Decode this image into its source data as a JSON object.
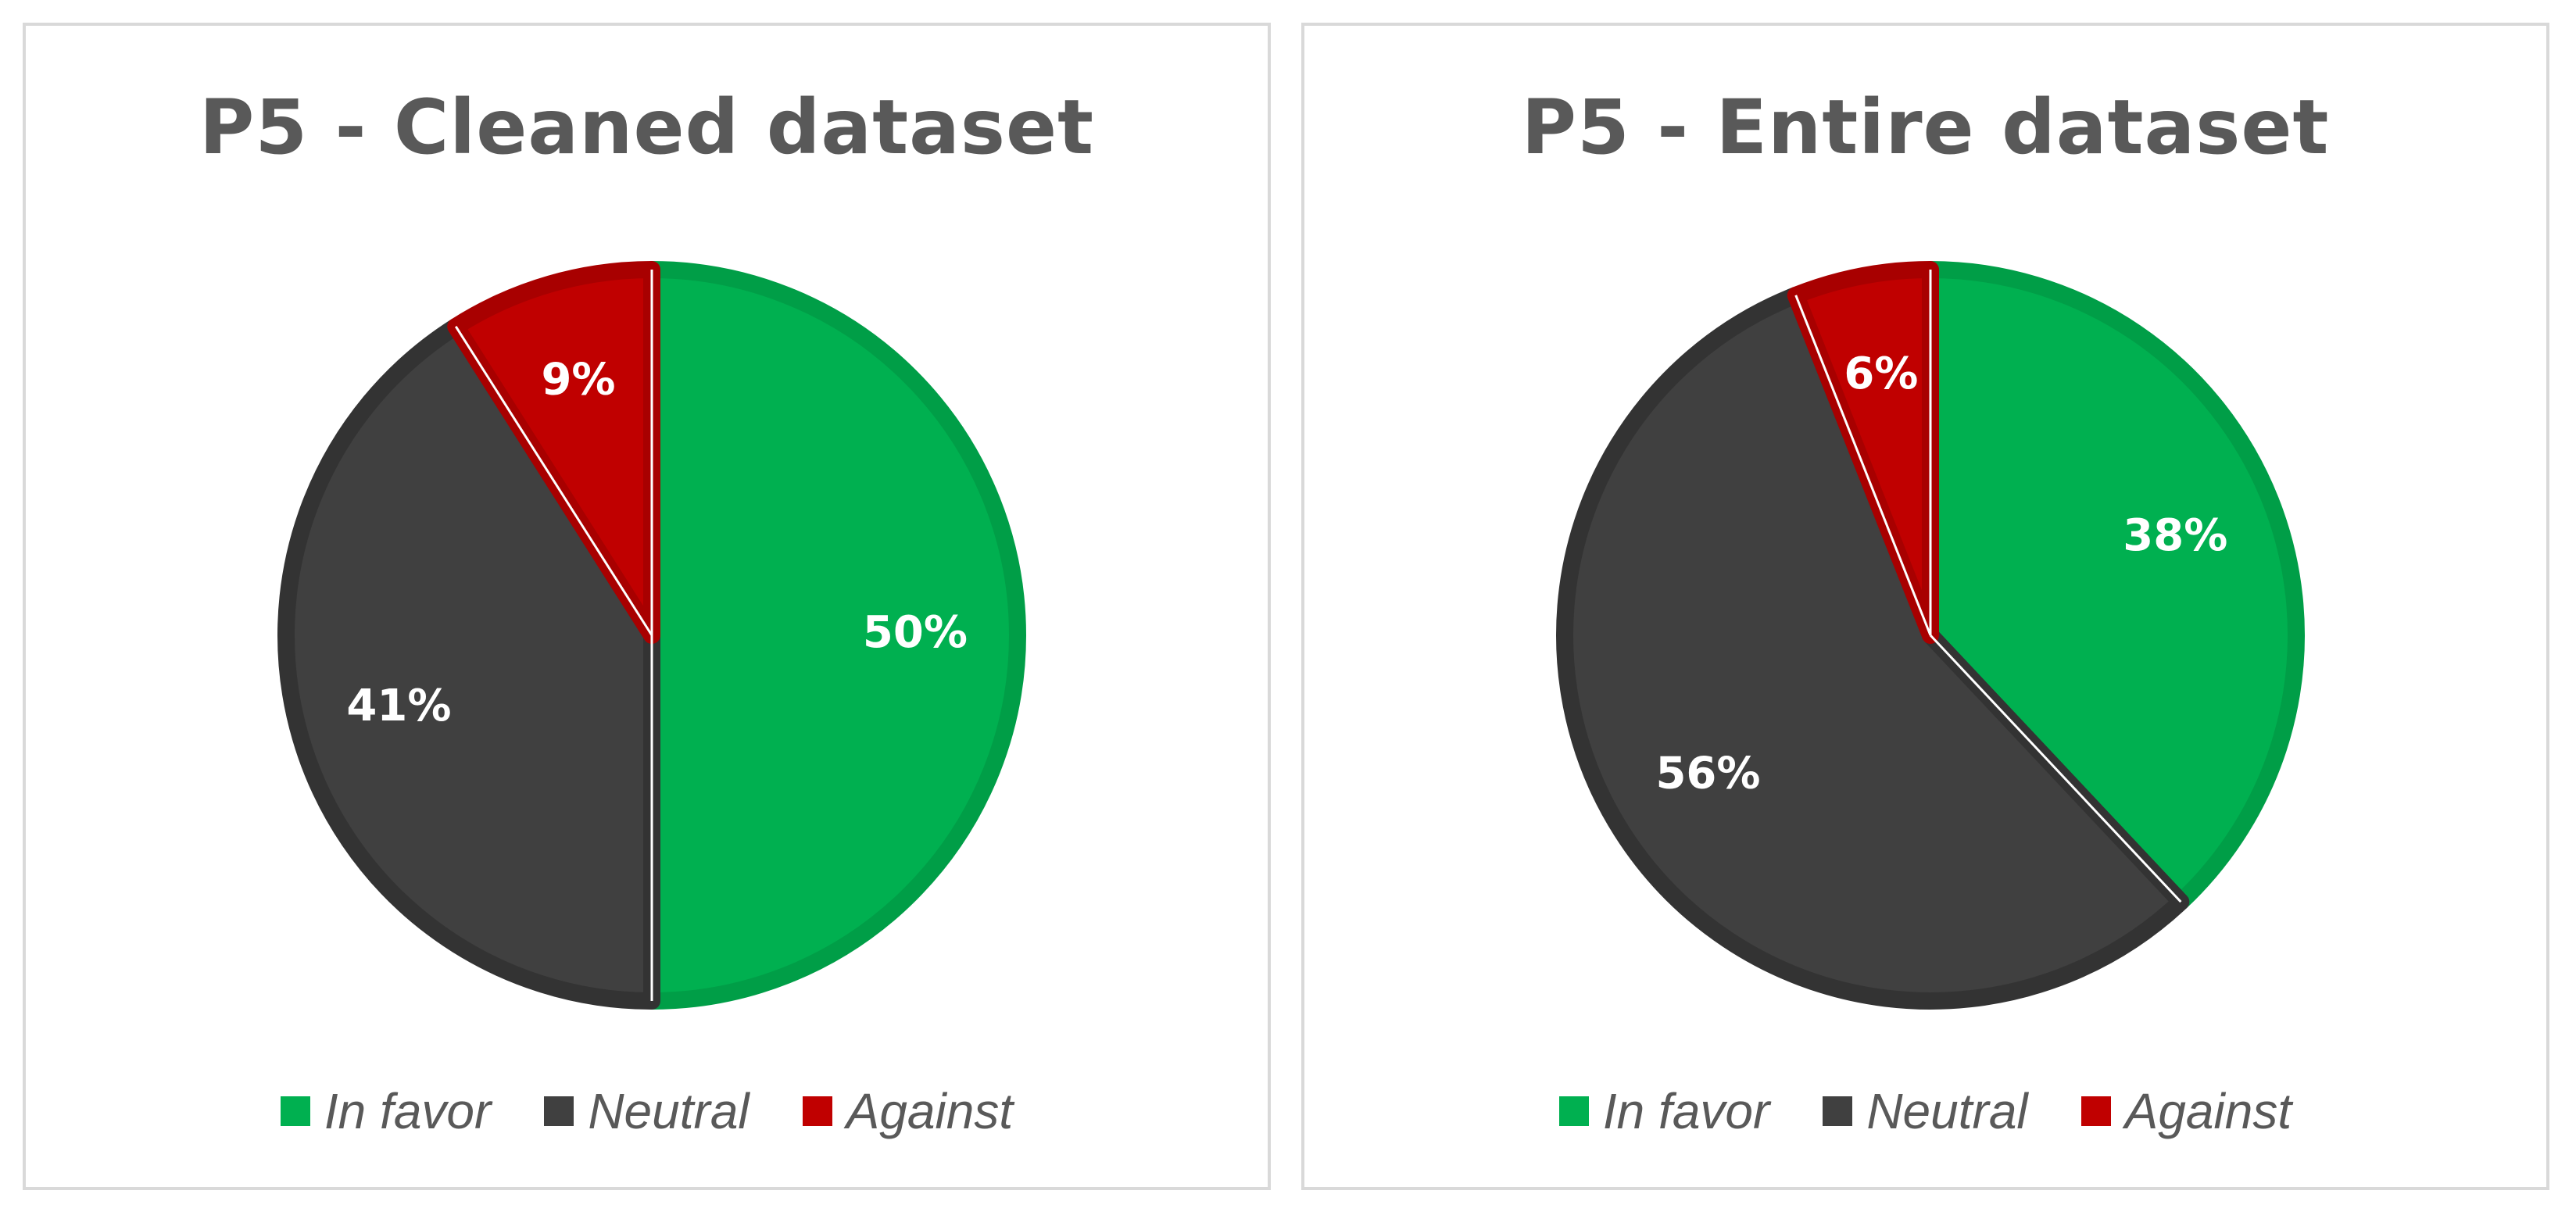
{
  "colors": {
    "in_favor": "#00b050",
    "neutral": "#404040",
    "against": "#c00000",
    "title": "#595959",
    "border": "#d9d9d9"
  },
  "chart_data": [
    {
      "type": "pie",
      "title": "P5 - Cleaned dataset",
      "labels": [
        "In favor",
        "Neutral",
        "Against"
      ],
      "values": [
        50,
        41,
        9
      ],
      "data_labels": [
        "50%",
        "41%",
        "9%"
      ],
      "legend_position": "bottom",
      "legend": [
        "In favor",
        "Neutral",
        "Against"
      ]
    },
    {
      "type": "pie",
      "title": "P5 - Entire dataset",
      "labels": [
        "In favor",
        "Neutral",
        "Against"
      ],
      "values": [
        38,
        56,
        6
      ],
      "data_labels": [
        "38%",
        "56%",
        "6%"
      ],
      "legend_position": "bottom",
      "legend": [
        "In favor",
        "Neutral",
        "Against"
      ]
    }
  ]
}
